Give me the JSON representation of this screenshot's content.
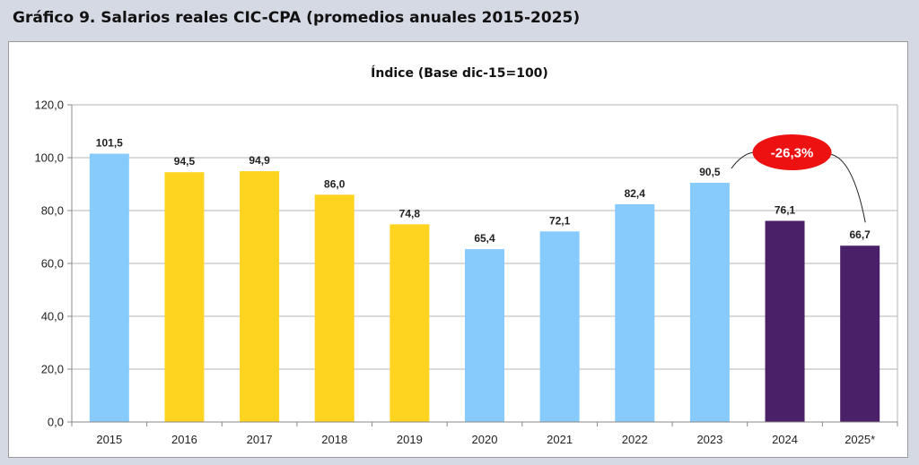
{
  "page": {
    "title": "Gráfico 9. Salarios reales CIC-CPA (promedios anuales 2015-2025)"
  },
  "chart_data": {
    "type": "bar",
    "title": "Índice (Base dic-15=100)",
    "xlabel": "",
    "ylabel": "",
    "ylim": [
      0,
      120
    ],
    "yticks": [
      "0,0",
      "20,0",
      "40,0",
      "60,0",
      "80,0",
      "100,0",
      "120,0"
    ],
    "grid": true,
    "categories": [
      "2015",
      "2016",
      "2017",
      "2018",
      "2019",
      "2020",
      "2021",
      "2022",
      "2023",
      "2024",
      "2025*"
    ],
    "values": [
      101.5,
      94.5,
      94.9,
      86.0,
      74.8,
      65.4,
      72.1,
      82.4,
      90.5,
      76.1,
      66.7
    ],
    "data_labels": [
      "101,5",
      "94,5",
      "94,9",
      "86,0",
      "74,8",
      "65,4",
      "72,1",
      "82,4",
      "90,5",
      "76,1",
      "66,7"
    ],
    "colors": [
      "#87cbfc",
      "#ffd420",
      "#ffd420",
      "#ffd420",
      "#ffd420",
      "#87cbfc",
      "#87cbfc",
      "#87cbfc",
      "#87cbfc",
      "#4a2068",
      "#4a2068"
    ],
    "annotation": {
      "text": "-26,3%",
      "from": "2023",
      "to": "2025*",
      "color": "#ee1111"
    }
  }
}
